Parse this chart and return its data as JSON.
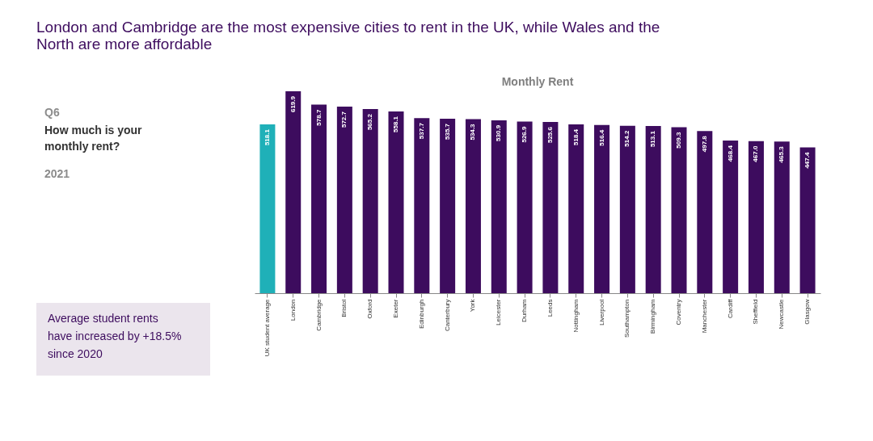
{
  "chart_data": {
    "type": "bar",
    "title": "London and Cambridge are the most expensive cities to rent in the UK, while Wales and the North are more affordable",
    "subtitle": "Monthly Rent",
    "categories": [
      "UK student average",
      "London",
      "Cambridge",
      "Bristol",
      "Oxford",
      "Exeter",
      "Edinburgh",
      "Canterbury",
      "York",
      "Leicester",
      "Durham",
      "Leeds",
      "Nottingham",
      "Liverpool",
      "Southampton",
      "Birmingham",
      "Coventry",
      "Manchester",
      "Cardiff",
      "Sheffield",
      "Newcastle",
      "Glasgow"
    ],
    "values": [
      518.1,
      619.9,
      578.7,
      572.7,
      565.2,
      558.1,
      537.7,
      535.7,
      534.3,
      530.9,
      526.9,
      525.6,
      518.4,
      516.4,
      514.2,
      513.1,
      509.3,
      497.8,
      468.4,
      467.0,
      465.3,
      447.4
    ],
    "colors": [
      "#1fb0b8",
      "#3d0c5e",
      "#3d0c5e",
      "#3d0c5e",
      "#3d0c5e",
      "#3d0c5e",
      "#3d0c5e",
      "#3d0c5e",
      "#3d0c5e",
      "#3d0c5e",
      "#3d0c5e",
      "#3d0c5e",
      "#3d0c5e",
      "#3d0c5e",
      "#3d0c5e",
      "#3d0c5e",
      "#3d0c5e",
      "#3d0c5e",
      "#3d0c5e",
      "#3d0c5e",
      "#3d0c5e",
      "#3d0c5e"
    ],
    "value_labels": [
      "518.1",
      "619.9",
      "578.7",
      "572.7",
      "565.2",
      "558.1",
      "537.7",
      "535.7",
      "534.3",
      "530.9",
      "526.9",
      "525.6",
      "518.4",
      "516.4",
      "514.2",
      "513.1",
      "509.3",
      "497.8",
      "468.4",
      "467.0",
      "465.3",
      "447.4"
    ],
    "annotations": [
      "Q6",
      "How much is your monthly rent?",
      "2021",
      "Average student rents have increased by +18.5% since 2020"
    ]
  }
}
